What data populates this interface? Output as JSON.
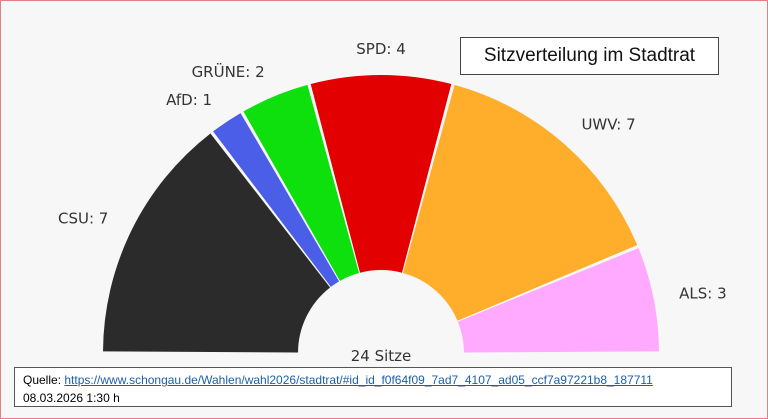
{
  "title": "Sitzverteilung im Stadtrat",
  "source": {
    "label": "Quelle:",
    "url": "https://www.schongau.de/Wahlen/wahl2026/stadtrat/#id_id_f0f64f09_7ad7_4107_ad05_ccf7a97221b8_187711",
    "date": "08.03.2026 1:30 h"
  },
  "chart_data": {
    "type": "pie",
    "variant": "parliament-semicircle",
    "total_label": "24 Sitze",
    "total": 24,
    "categories": [
      "CSU",
      "AfD",
      "GRÜNE",
      "SPD",
      "UWV",
      "ALS"
    ],
    "values": [
      7,
      1,
      2,
      4,
      7,
      3
    ],
    "labels": [
      "CSU: 7",
      "AfD: 1",
      "GRÜNE: 2",
      "SPD: 4",
      "UWV: 7",
      "ALS: 3"
    ],
    "colors": [
      "#2b2b2b",
      "#4a5ee8",
      "#0de00d",
      "#e30000",
      "#ffae2b",
      "#ffaaff"
    ]
  }
}
